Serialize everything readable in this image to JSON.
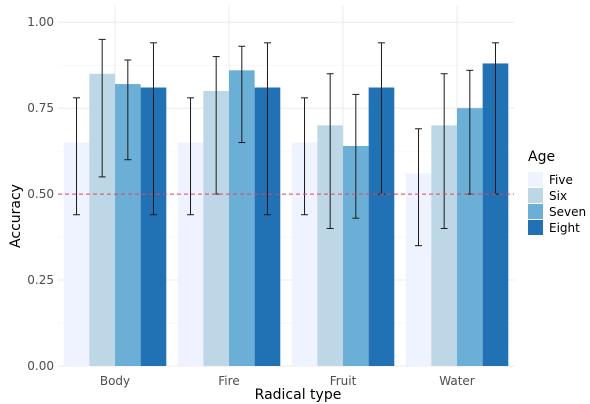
{
  "chart_data": {
    "type": "bar",
    "xlabel": "Radical type",
    "ylabel": "Accuracy",
    "categories": [
      "Body",
      "Fire",
      "Fruit",
      "Water"
    ],
    "ylim": [
      0,
      1.05
    ],
    "yticks": [
      "0.00",
      "0.25",
      "0.50",
      "0.75",
      "1.00"
    ],
    "legend_title": "Age",
    "legend_position": "right",
    "grid": true,
    "reference_line": {
      "y": 0.5,
      "style": "dashed",
      "color": "#e0485e"
    },
    "series": [
      {
        "name": "Five",
        "color": "#eff3ff",
        "values": [
          0.65,
          0.65,
          0.65,
          0.56
        ],
        "err_low": [
          0.44,
          0.44,
          0.44,
          0.35
        ],
        "err_high": [
          0.78,
          0.78,
          0.78,
          0.69
        ]
      },
      {
        "name": "Six",
        "color": "#bdd7e7",
        "values": [
          0.85,
          0.8,
          0.7,
          0.7
        ],
        "err_low": [
          0.55,
          0.5,
          0.4,
          0.4
        ],
        "err_high": [
          0.95,
          0.9,
          0.85,
          0.85
        ]
      },
      {
        "name": "Seven",
        "color": "#6baed6",
        "values": [
          0.82,
          0.86,
          0.64,
          0.75
        ],
        "err_low": [
          0.6,
          0.65,
          0.43,
          0.5
        ],
        "err_high": [
          0.89,
          0.93,
          0.79,
          0.86
        ]
      },
      {
        "name": "Eight",
        "color": "#2171b5",
        "values": [
          0.81,
          0.81,
          0.81,
          0.88
        ],
        "err_low": [
          0.44,
          0.44,
          0.5,
          0.5
        ],
        "err_high": [
          0.94,
          0.94,
          0.94,
          0.94
        ]
      }
    ]
  }
}
